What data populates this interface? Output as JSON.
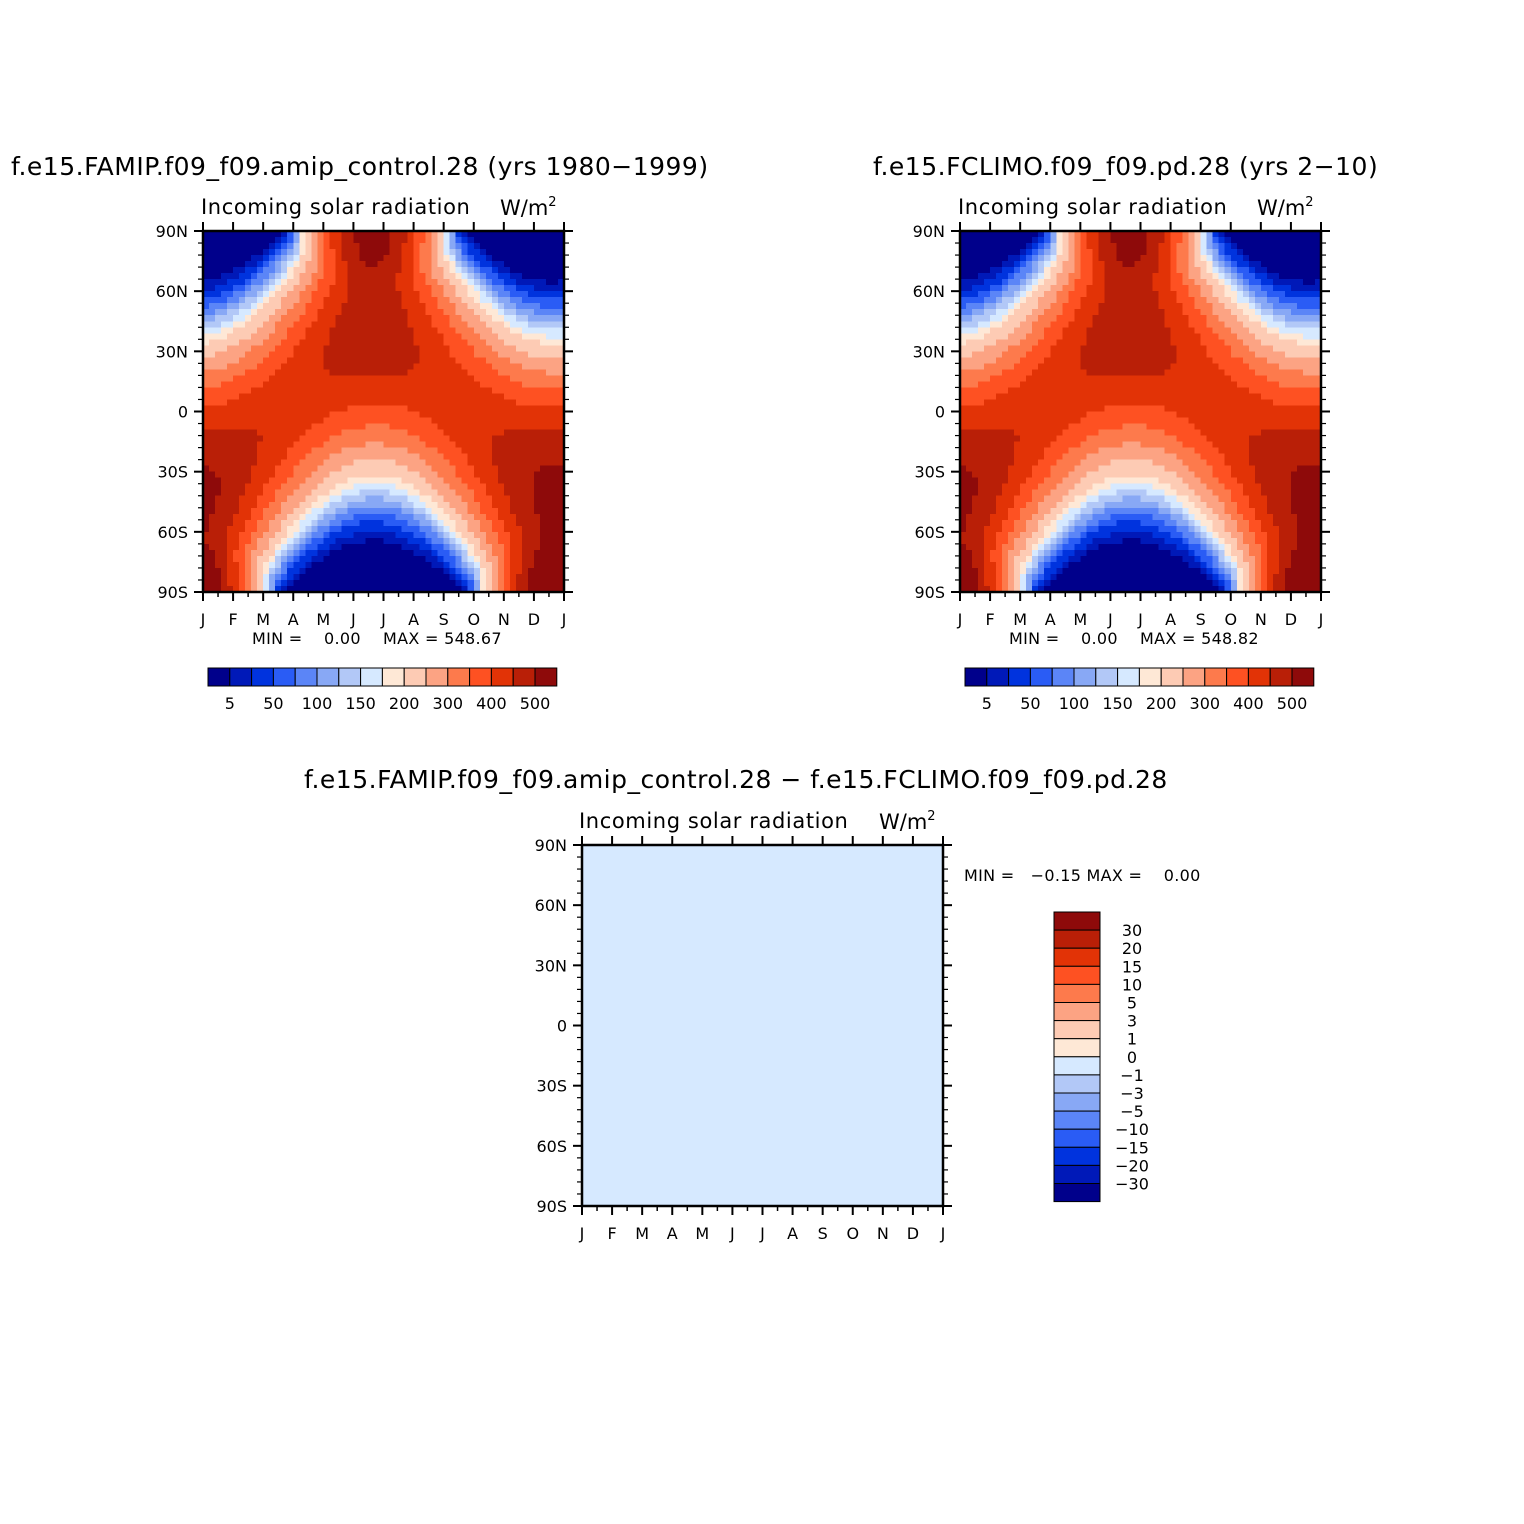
{
  "chart_data": [
    {
      "type": "heatmap",
      "title": "f.e15.FAMIP.f09_f09.amip_control.28 (yrs 1980−1999)",
      "subtitle": "Incoming solar radiation",
      "units": "W/m",
      "units_sup": "2",
      "x_ticks": [
        "J",
        "F",
        "M",
        "A",
        "M",
        "J",
        "J",
        "A",
        "S",
        "O",
        "N",
        "D",
        "J"
      ],
      "y_ticks": [
        "90N",
        "60N",
        "30N",
        "0",
        "30S",
        "60S",
        "90S"
      ],
      "min_label": "MIN =    0.00",
      "max_label": "MAX = 548.67",
      "levels": [
        "5",
        "50",
        "100",
        "150",
        "200",
        "300",
        "400",
        "500"
      ],
      "min": 0.0,
      "max": 548.67
    },
    {
      "type": "heatmap",
      "title": "f.e15.FCLIMO.f09_f09.pd.28 (yrs 2−10)",
      "subtitle": "Incoming solar radiation",
      "units": "W/m",
      "units_sup": "2",
      "x_ticks": [
        "J",
        "F",
        "M",
        "A",
        "M",
        "J",
        "J",
        "A",
        "S",
        "O",
        "N",
        "D",
        "J"
      ],
      "y_ticks": [
        "90N",
        "60N",
        "30N",
        "0",
        "30S",
        "60S",
        "90S"
      ],
      "min_label": "MIN =    0.00",
      "max_label": "MAX = 548.82",
      "levels": [
        "5",
        "50",
        "100",
        "150",
        "200",
        "300",
        "400",
        "500"
      ],
      "min": 0.0,
      "max": 548.82
    },
    {
      "type": "heatmap",
      "title": "f.e15.FAMIP.f09_f09.amip_control.28 − f.e15.FCLIMO.f09_f09.pd.28",
      "subtitle": "Incoming solar radiation",
      "units": "W/m",
      "units_sup": "2",
      "x_ticks": [
        "J",
        "F",
        "M",
        "A",
        "M",
        "J",
        "J",
        "A",
        "S",
        "O",
        "N",
        "D",
        "J"
      ],
      "y_ticks": [
        "90N",
        "60N",
        "30N",
        "0",
        "30S",
        "60S",
        "90S"
      ],
      "minmax_label": "MIN =   −0.15 MAX =    0.00",
      "levels": [
        "30",
        "20",
        "15",
        "10",
        "5",
        "3",
        "1",
        "0",
        "−1",
        "−3",
        "−5",
        "−10",
        "−15",
        "−20",
        "−30"
      ],
      "min": -0.15,
      "max": 0.0
    }
  ],
  "colors": {
    "seq": [
      "#00008b",
      "#0019b8",
      "#0033de",
      "#2a5cf5",
      "#5b85f7",
      "#88a8f5",
      "#b2c8f7",
      "#d6e9ff",
      "#fee8d6",
      "#fdcbb4",
      "#fca383",
      "#fd7a4c",
      "#fe5122",
      "#e23306",
      "#b91f07",
      "#8e0a0a"
    ],
    "div": [
      "#8e0a0a",
      "#b91f07",
      "#e23306",
      "#fe5122",
      "#fd7a4c",
      "#fca383",
      "#fdcbb4",
      "#fee8d6",
      "#d6e9ff",
      "#b2c8f7",
      "#88a8f5",
      "#5b85f7",
      "#2a5cf5",
      "#0033de",
      "#0019b8",
      "#00008b"
    ],
    "diff_fill": "#d6e9ff"
  }
}
